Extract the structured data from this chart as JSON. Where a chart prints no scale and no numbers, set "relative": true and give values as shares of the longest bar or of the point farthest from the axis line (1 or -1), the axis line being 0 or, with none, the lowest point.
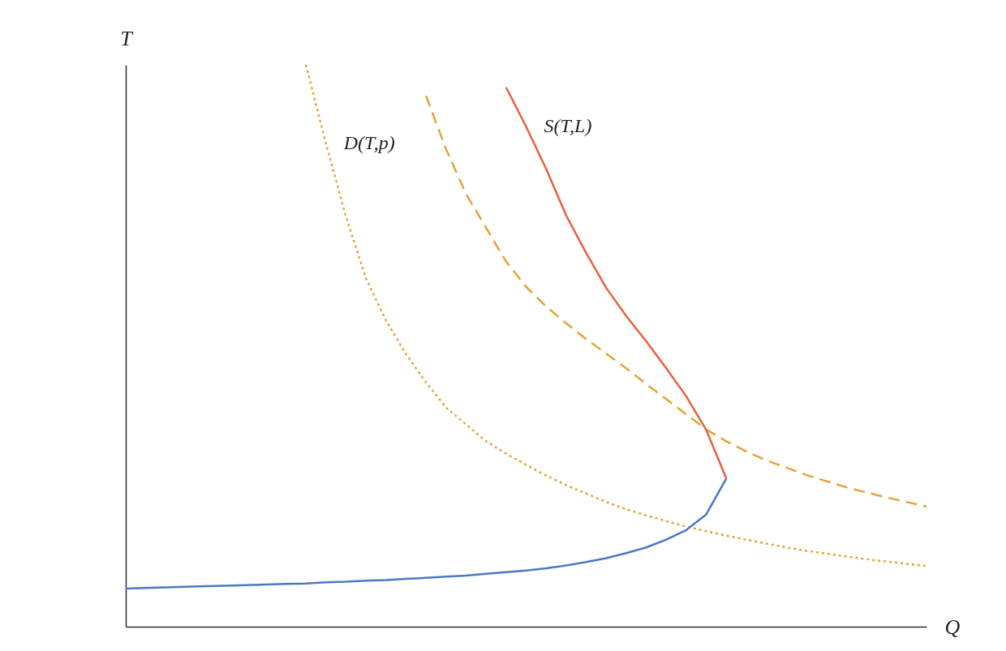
{
  "chart_data": {
    "type": "line",
    "relative": true,
    "xlabel": "Q",
    "ylabel": "T",
    "grid": false,
    "marker": "none",
    "categories": [
      null,
      null,
      null,
      null,
      null,
      null,
      null,
      null,
      null,
      null,
      null,
      null,
      null,
      null,
      null,
      null,
      null,
      null,
      null,
      null,
      null,
      null,
      null,
      null,
      null,
      null,
      null,
      null,
      null,
      null,
      null,
      null,
      null,
      null,
      null,
      null,
      null,
      null,
      null,
      null,
      null
    ],
    "series": [
      {
        "name": "D(T,p)",
        "color": "#e3a336",
        "line_style": "dotted",
        "values": [
          null,
          null,
          null,
          null,
          null,
          null,
          null,
          null,
          null,
          1.0,
          0.86,
          0.73,
          0.62,
          0.545,
          0.485,
          0.435,
          0.39,
          0.36,
          0.33,
          0.308,
          0.288,
          0.269,
          0.252,
          0.237,
          0.222,
          0.209,
          0.198,
          0.188,
          0.178,
          0.17,
          0.162,
          0.155,
          0.148,
          0.141,
          0.135,
          0.13,
          0.125,
          0.12,
          0.116,
          0.112,
          0.108
        ]
      },
      {
        "color": "#e3a336",
        "line_style": "dashed",
        "values": [
          null,
          null,
          null,
          null,
          null,
          null,
          null,
          null,
          null,
          null,
          null,
          null,
          null,
          null,
          null,
          0.945,
          0.85,
          0.77,
          0.71,
          0.65,
          0.605,
          0.57,
          0.54,
          0.512,
          0.486,
          0.46,
          0.432,
          0.405,
          0.378,
          0.351,
          0.33,
          0.312,
          0.296,
          0.283,
          0.27,
          0.259,
          0.248,
          0.239,
          0.23,
          0.222,
          0.214
        ]
      },
      {
        "name": "S(T,L)",
        "color": "#e8603c",
        "line_style": "solid",
        "values": [
          null,
          null,
          null,
          null,
          null,
          null,
          null,
          null,
          null,
          null,
          null,
          null,
          null,
          null,
          null,
          null,
          null,
          null,
          null,
          0.96,
          0.89,
          0.815,
          0.732,
          0.665,
          0.603,
          0.553,
          0.508,
          0.46,
          0.41,
          0.35,
          0.264,
          null,
          null,
          null,
          null,
          null,
          null,
          null,
          null,
          null,
          null
        ]
      },
      {
        "color": "#4a78c4",
        "line_style": "solid",
        "values": [
          0.068,
          0.069,
          0.07,
          0.071,
          0.072,
          0.073,
          0.074,
          0.075,
          0.076,
          0.077,
          0.079,
          0.08,
          0.082,
          0.083,
          0.085,
          0.087,
          0.089,
          0.091,
          0.094,
          0.097,
          0.1,
          0.104,
          0.109,
          0.115,
          0.122,
          0.131,
          0.141,
          0.155,
          0.172,
          0.2,
          0.264,
          null,
          null,
          null,
          null,
          null,
          null,
          null,
          null,
          null,
          null
        ]
      }
    ]
  }
}
